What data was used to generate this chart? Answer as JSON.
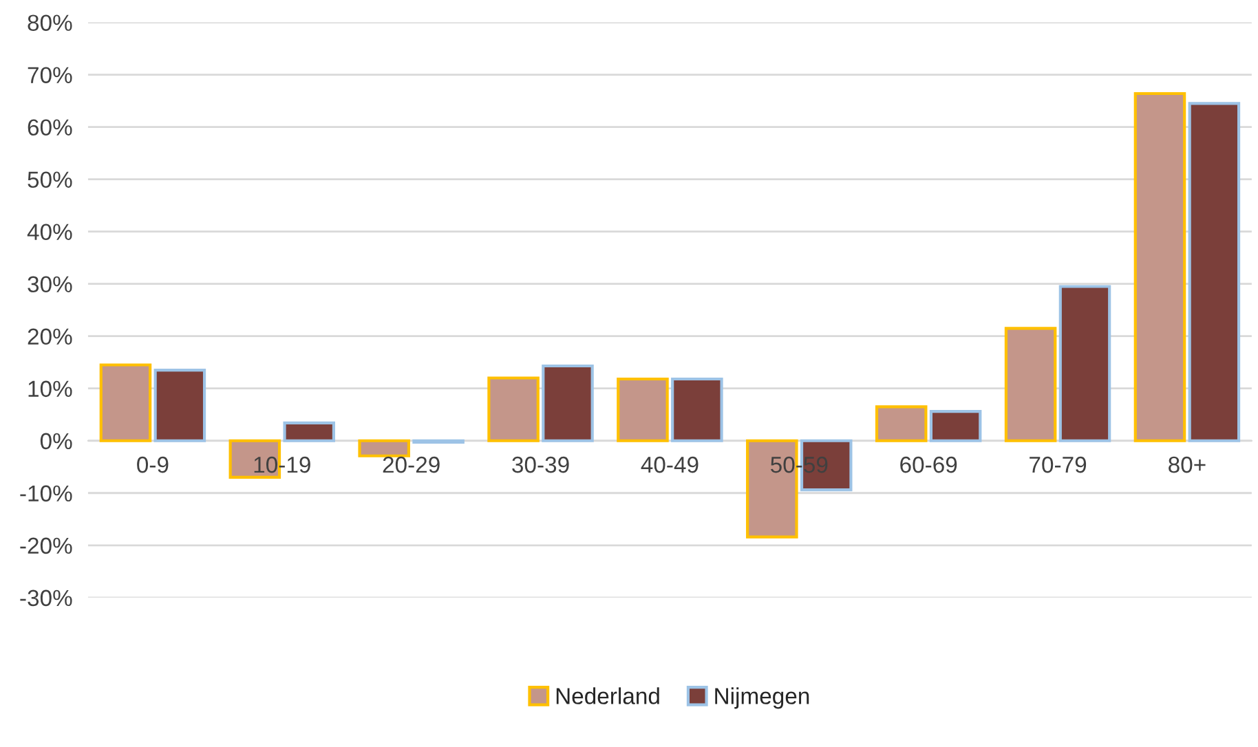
{
  "chart_data": {
    "type": "bar",
    "categories": [
      "0-9",
      "10-19",
      "20-29",
      "30-39",
      "40-49",
      "50-59",
      "60-69",
      "70-79",
      "80+"
    ],
    "series": [
      {
        "name": "Nederland",
        "color": "#c4968a",
        "values": [
          14.5,
          -7,
          -2.9,
          12,
          11.8,
          -18.4,
          6.5,
          21.5,
          66.4
        ]
      },
      {
        "name": "Nijmegen",
        "color": "#7b3f3a",
        "values": [
          13.5,
          3.4,
          -0.3,
          14.3,
          11.8,
          -9.4,
          5.6,
          29.5,
          64.5
        ]
      }
    ],
    "ylim": [
      -30,
      80
    ],
    "yticks": [
      {
        "value": -30,
        "label": "-30%"
      },
      {
        "value": -20,
        "label": "-20%"
      },
      {
        "value": -10,
        "label": "-10%"
      },
      {
        "value": 0,
        "label": "0%"
      },
      {
        "value": 10,
        "label": "10%"
      },
      {
        "value": 20,
        "label": "20%"
      },
      {
        "value": 30,
        "label": "30%"
      },
      {
        "value": 40,
        "label": "40%"
      },
      {
        "value": 50,
        "label": "50%"
      },
      {
        "value": 60,
        "label": "60%"
      },
      {
        "value": 70,
        "label": "70%"
      },
      {
        "value": 80,
        "label": "80%"
      }
    ],
    "grid": "y",
    "legend": "bottom"
  }
}
